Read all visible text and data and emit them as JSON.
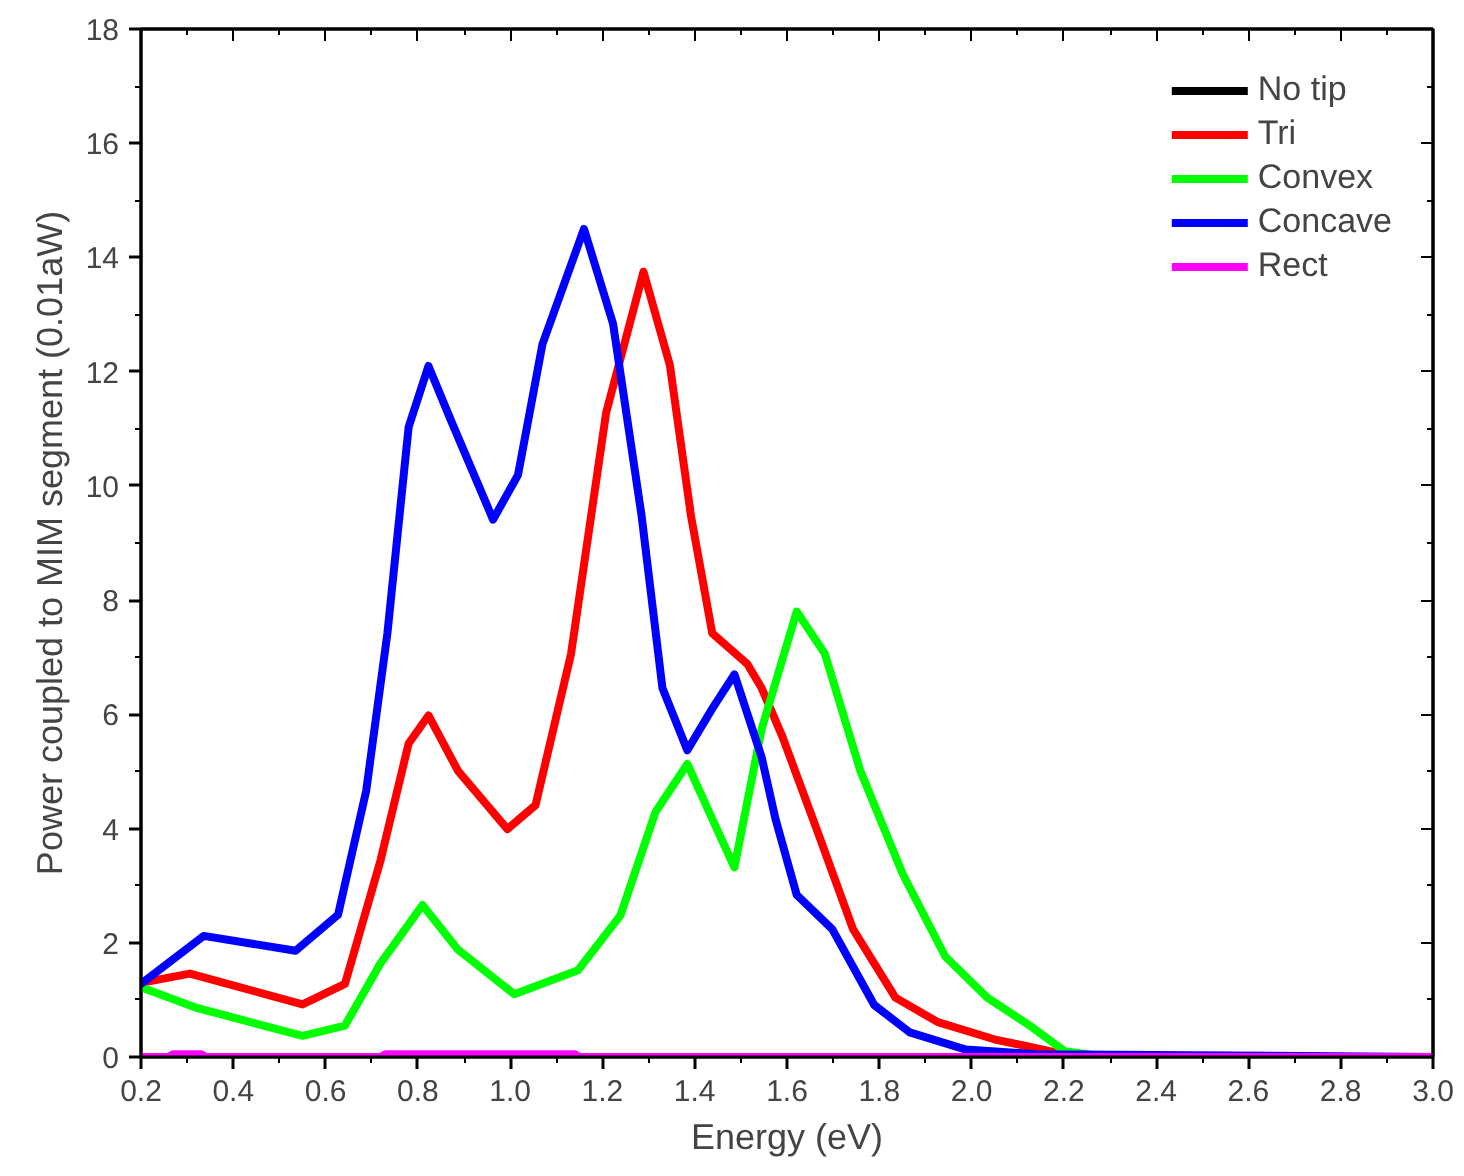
{
  "chart_data": {
    "type": "line",
    "xlabel": "Energy (eV)",
    "ylabel": "Power coupled to MIM segment (0.01aW)",
    "xlim": [
      0.2,
      3.0
    ],
    "ylim": [
      0,
      18
    ],
    "xticks": [
      0.2,
      0.4,
      0.6,
      0.8,
      {
        "value": 1.0,
        "label": "1.0"
      },
      1.2,
      1.4,
      1.6,
      1.8,
      {
        "value": 2.0,
        "label": "2.0"
      },
      2.2,
      2.4,
      2.6,
      2.8,
      {
        "value": 3.0,
        "label": "3.0"
      }
    ],
    "yticks": [
      0,
      2,
      4,
      6,
      8,
      10,
      12,
      14,
      16,
      18
    ],
    "grid": false,
    "legend": "top right",
    "marker": "none",
    "line_style": "solid",
    "series": [
      {
        "name": "No tip",
        "color": "#000000"
      },
      {
        "name": "Tri",
        "color": "#ff0000",
        "x": [
          0.2,
          0.306,
          0.55,
          0.642,
          0.719,
          0.78,
          0.823,
          0.887,
          0.994,
          1.055,
          1.132,
          1.208,
          1.289,
          1.346,
          1.392,
          1.438,
          1.514,
          1.545,
          1.59,
          1.667,
          1.743,
          1.835,
          1.927,
          2.049,
          2.172,
          2.233,
          3.0
        ],
        "values": [
          1.3,
          1.46,
          0.92,
          1.28,
          3.44,
          5.49,
          5.98,
          5.01,
          3.99,
          4.41,
          7.06,
          11.28,
          13.75,
          12.12,
          9.47,
          7.42,
          6.88,
          6.46,
          5.61,
          3.93,
          2.24,
          1.04,
          0.61,
          0.31,
          0.1,
          0,
          0
        ]
      },
      {
        "name": "Convex",
        "color": "#00ff00",
        "x": [
          0.2,
          0.321,
          0.55,
          0.642,
          0.719,
          0.81,
          0.887,
          1.009,
          1.147,
          1.239,
          1.315,
          1.384,
          1.438,
          1.486,
          1.545,
          1.621,
          1.682,
          1.759,
          1.851,
          1.943,
          2.034,
          2.126,
          2.202,
          2.294,
          3.0
        ],
        "values": [
          1.22,
          0.86,
          0.37,
          0.55,
          1.64,
          2.66,
          1.88,
          1.1,
          1.52,
          2.48,
          4.29,
          5.13,
          4.17,
          3.32,
          5.74,
          7.8,
          7.06,
          5.01,
          3.2,
          1.76,
          1.04,
          0.55,
          0.1,
          0,
          0
        ]
      },
      {
        "name": "Concave",
        "color": "#0000ff",
        "x": [
          0.2,
          0.336,
          0.535,
          0.627,
          0.688,
          0.734,
          0.78,
          0.823,
          0.871,
          0.963,
          1.017,
          1.07,
          1.16,
          1.223,
          1.285,
          1.33,
          1.384,
          1.438,
          1.486,
          1.545,
          1.575,
          1.621,
          1.698,
          1.789,
          1.866,
          1.988,
          2.14,
          3.0
        ],
        "values": [
          1.28,
          2.12,
          1.86,
          2.49,
          4.66,
          7.42,
          11.03,
          12.1,
          11.16,
          9.41,
          10.19,
          12.48,
          14.5,
          12.84,
          9.47,
          6.46,
          5.37,
          6.1,
          6.7,
          5.25,
          4.17,
          2.84,
          2.24,
          0.91,
          0.43,
          0.13,
          0.05,
          0
        ]
      },
      {
        "name": "Rect",
        "color": "#ff00ff",
        "x": [
          0.2,
          0.26,
          0.27,
          0.33,
          0.34,
          0.72,
          0.73,
          1.14,
          1.15,
          3.0
        ],
        "values": [
          0,
          0,
          0.05,
          0.05,
          0,
          0,
          0.05,
          0.05,
          0,
          0
        ]
      }
    ]
  }
}
